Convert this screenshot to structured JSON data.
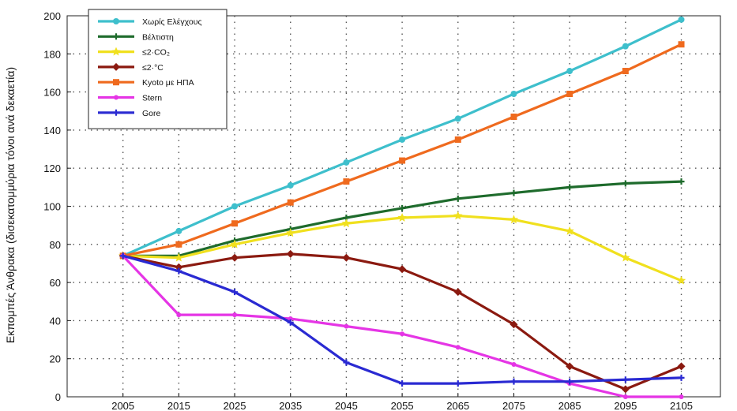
{
  "chart_data": {
    "type": "line",
    "ylabel": "Εκπομπές Άνθρακα (δισεκατομμύρια τόνοι ανά δεκαετία)",
    "xlabel": "",
    "x": [
      2005,
      2015,
      2025,
      2035,
      2045,
      2055,
      2065,
      2075,
      2085,
      2095,
      2105
    ],
    "xticks": [
      "2005",
      "2015",
      "2025",
      "2035",
      "2045",
      "2055",
      "2065",
      "2075",
      "2085",
      "2095",
      "2105"
    ],
    "yticks": [
      "0",
      "20",
      "40",
      "60",
      "80",
      "100",
      "120",
      "140",
      "160",
      "180",
      "200"
    ],
    "xlim": [
      1995,
      2112
    ],
    "ylim": [
      0,
      200
    ],
    "grid": true,
    "legend_position": "top-left",
    "series": [
      {
        "name": "Χωρίς Ελέγχους",
        "color": "#3ebfcc",
        "marker": "circle",
        "values": [
          74,
          87,
          100,
          111,
          123,
          135,
          146,
          159,
          171,
          184,
          198
        ]
      },
      {
        "name": "Βέλτιστη",
        "color": "#1e6b2c",
        "marker": "plus",
        "values": [
          74,
          74,
          82,
          88,
          94,
          99,
          104,
          107,
          110,
          112,
          113
        ]
      },
      {
        "name": "≤2·CO₂",
        "color": "#f0e01e",
        "marker": "star",
        "values": [
          74,
          73,
          80,
          86,
          91,
          94,
          95,
          93,
          87,
          73,
          61
        ]
      },
      {
        "name": "≤2·°C",
        "color": "#8b1a10",
        "marker": "diamond",
        "values": [
          74,
          68,
          73,
          75,
          73,
          67,
          55,
          38,
          16,
          4,
          16
        ]
      },
      {
        "name": "Kyoto με ΗΠΑ",
        "color": "#ef6a1e",
        "marker": "square",
        "values": [
          74,
          80,
          91,
          102,
          113,
          124,
          135,
          147,
          159,
          171,
          185
        ]
      },
      {
        "name": "Stern",
        "color": "#e535e5",
        "marker": "dot",
        "values": [
          74,
          43,
          43,
          41,
          37,
          33,
          26,
          17,
          7,
          0,
          0
        ]
      },
      {
        "name": "Gore",
        "color": "#2a2ad2",
        "marker": "plus",
        "values": [
          74,
          66,
          55,
          39,
          18,
          7,
          7,
          8,
          8,
          9,
          10
        ]
      }
    ]
  }
}
